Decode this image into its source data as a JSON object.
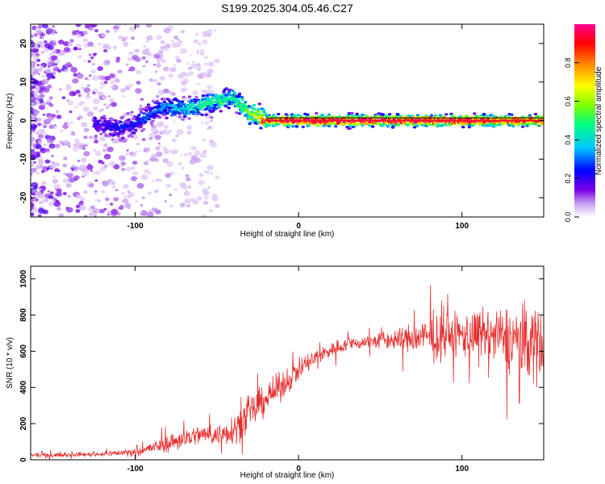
{
  "title": "S199.2025.304.05.46.C27",
  "chart_data": [
    {
      "type": "heatmap",
      "xlabel": "Height of straight line (km)",
      "ylabel": "Frequency (Hz)",
      "xlim": [
        -164,
        150
      ],
      "ylim": [
        -25,
        25
      ],
      "xticks": [
        -100,
        0,
        100
      ],
      "yticks": [
        -20,
        -10,
        0,
        10,
        20
      ],
      "xtick_labels": [
        "-100",
        "0",
        "100"
      ],
      "ytick_labels": [
        "-20",
        "-10",
        "0",
        "10",
        "20"
      ],
      "colorbar": {
        "label": "Normalized spectral amplitude",
        "range": [
          0,
          1
        ],
        "ticks": [
          0.0,
          0.2,
          0.4,
          0.6,
          0.8
        ],
        "tick_labels": [
          "0.0",
          "0.2",
          "0.4",
          "0.6",
          "0.8"
        ],
        "colors": [
          "#ffffff",
          "#c8a0f0",
          "#7a00e6",
          "#0000ff",
          "#00c8ff",
          "#00ff80",
          "#80ff00",
          "#ffff00",
          "#ff8000",
          "#ff0000",
          "#ff0090"
        ]
      },
      "ridge": {
        "x": [
          -120,
          -110,
          -100,
          -90,
          -80,
          -70,
          -60,
          -50,
          -40,
          -35,
          -30,
          -25,
          -20,
          0,
          50,
          100,
          150
        ],
        "freq": [
          -1,
          -2,
          -1,
          2,
          4,
          3,
          4,
          5,
          6,
          4,
          2,
          1,
          0,
          0,
          0,
          0,
          0
        ],
        "amplitude": [
          0.2,
          0.25,
          0.25,
          0.3,
          0.35,
          0.4,
          0.45,
          0.5,
          0.45,
          0.5,
          0.6,
          0.7,
          0.9,
          1.0,
          1.0,
          0.95,
          0.9
        ]
      }
    },
    {
      "type": "line",
      "xlabel": "Height of straight line (km)",
      "ylabel": "SNR (10 * v/v)",
      "xlim": [
        -164,
        150
      ],
      "ylim": [
        0,
        1070
      ],
      "xticks": [
        -100,
        0,
        100
      ],
      "yticks": [
        0,
        200,
        400,
        600,
        800,
        1000
      ],
      "xtick_labels": [
        "-100",
        "0",
        "100"
      ],
      "ytick_labels": [
        "0",
        "200",
        "400",
        "600",
        "800",
        "1000"
      ],
      "color": "#e02020",
      "envelope": {
        "x": [
          -164,
          -140,
          -120,
          -100,
          -90,
          -80,
          -70,
          -60,
          -50,
          -40,
          -30,
          -20,
          -10,
          0,
          10,
          20,
          30,
          40,
          50,
          60,
          70,
          80,
          90,
          100,
          110,
          120,
          130,
          140,
          150
        ],
        "y": [
          25,
          28,
          32,
          45,
          65,
          90,
          120,
          140,
          135,
          170,
          250,
          340,
          410,
          500,
          560,
          610,
          640,
          650,
          660,
          665,
          670,
          680,
          685,
          690,
          690,
          680,
          670,
          660,
          650
        ],
        "noise": [
          10,
          10,
          12,
          20,
          30,
          45,
          55,
          50,
          50,
          80,
          90,
          80,
          70,
          60,
          50,
          40,
          35,
          35,
          45,
          60,
          80,
          100,
          110,
          120,
          130,
          140,
          170,
          200,
          220
        ]
      }
    }
  ]
}
